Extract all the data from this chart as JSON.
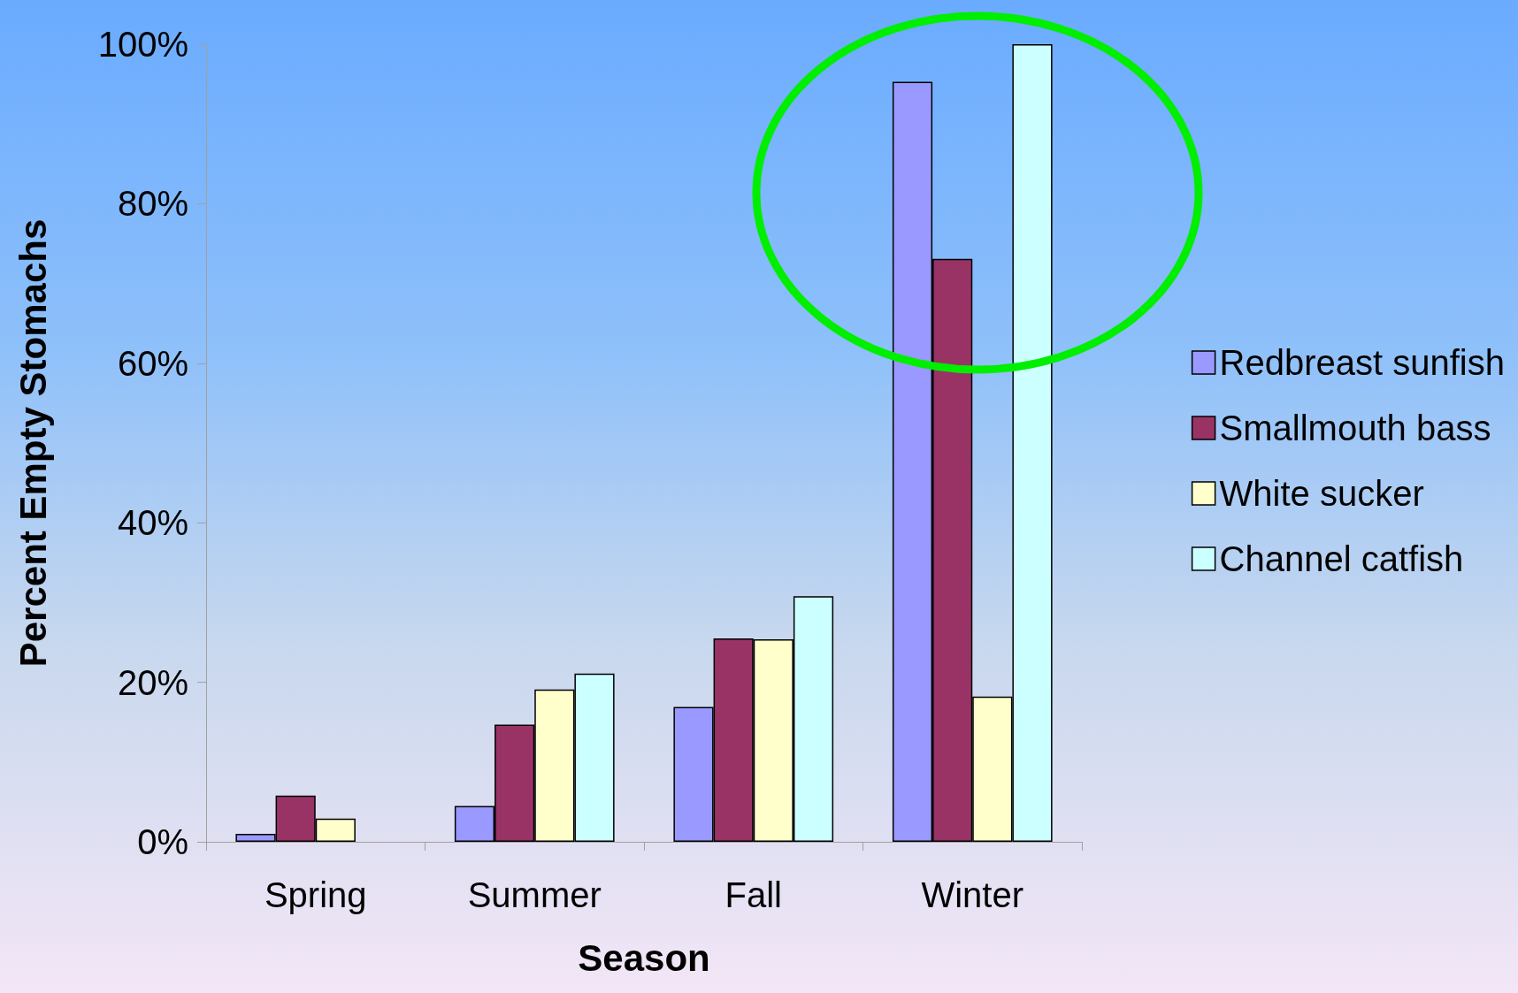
{
  "chart_data": {
    "type": "bar",
    "xlabel": "Season",
    "ylabel": "Percent Empty Stomachs",
    "categories": [
      "Spring",
      "Summer",
      "Fall",
      "Winter"
    ],
    "series": [
      {
        "name": "Redbreast sunfish",
        "color": "#9999ff",
        "values": [
          1,
          4.5,
          16.9,
          95.3
        ]
      },
      {
        "name": "Smallmouth bass",
        "color": "#993366",
        "values": [
          5.8,
          14.7,
          25.5,
          73.1
        ]
      },
      {
        "name": "White sucker",
        "color": "#ffffcc",
        "values": [
          2.9,
          19.1,
          25.4,
          18.2
        ]
      },
      {
        "name": "Channel catfish",
        "color": "#ccffff",
        "values": [
          null,
          21.1,
          30.8,
          100
        ]
      }
    ],
    "ylim": [
      0,
      100
    ],
    "yticks": [
      {
        "value": 0,
        "label": "0%"
      },
      {
        "value": 20,
        "label": "20%"
      },
      {
        "value": 40,
        "label": "40%"
      },
      {
        "value": 60,
        "label": "60%"
      },
      {
        "value": 80,
        "label": "80%"
      },
      {
        "value": 100,
        "label": "100%"
      }
    ],
    "grid": false,
    "legend": "right"
  }
}
